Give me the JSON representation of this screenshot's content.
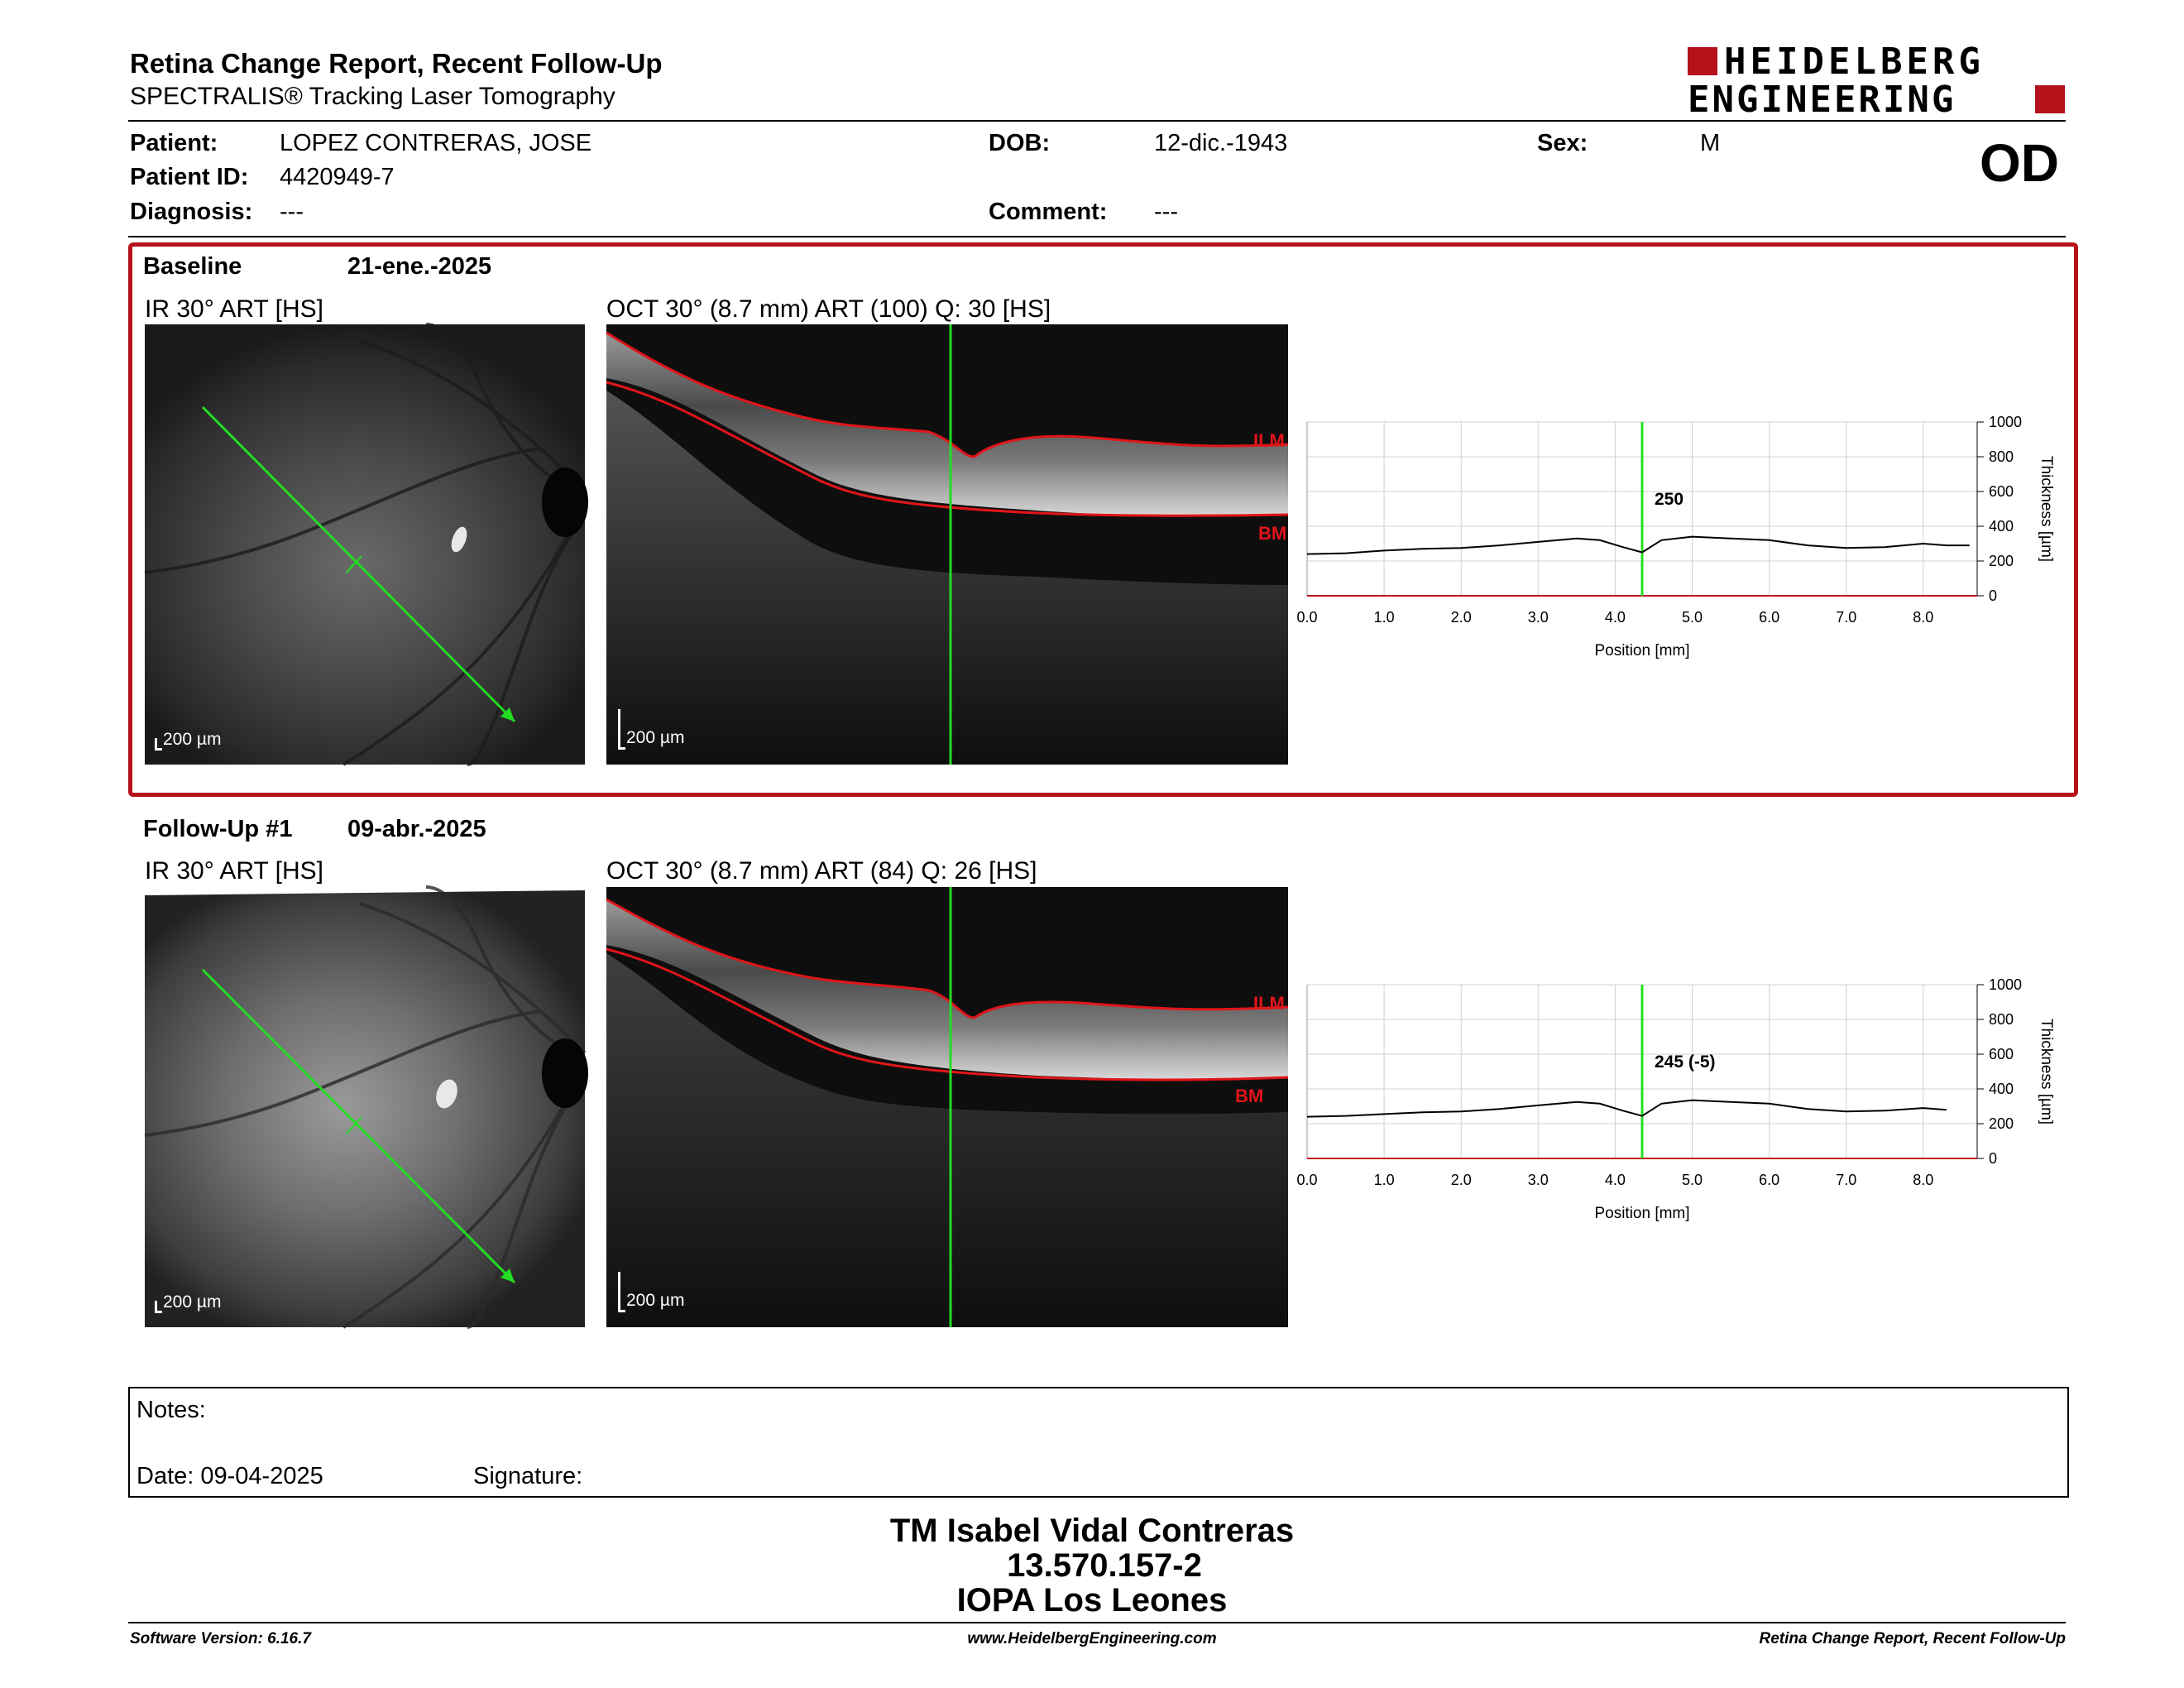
{
  "header": {
    "title": "Retina Change Report, Recent Follow-Up",
    "subtitle": "SPECTRALIS® Tracking Laser Tomography",
    "logo_line1": "HEIDELBERG",
    "logo_line2": "ENGINEERING",
    "eye": "OD"
  },
  "patient": {
    "patient_label": "Patient:",
    "patient_value": "LOPEZ CONTRERAS, JOSE",
    "id_label": "Patient ID:",
    "id_value": "4420949-7",
    "diagnosis_label": "Diagnosis:",
    "diagnosis_value": "---",
    "dob_label": "DOB:",
    "dob_value": "12-dic.-1943",
    "comment_label": "Comment:",
    "comment_value": "---",
    "sex_label": "Sex:",
    "sex_value": "M"
  },
  "exams": [
    {
      "label": "Baseline",
      "date": "21-ene.-2025",
      "ir_title": "IR 30° ART [HS]",
      "oct_title": "OCT 30° (8.7 mm) ART (100) Q: 30 [HS]",
      "ir_scale": "200 µm",
      "oct_scale": "200 µm",
      "ilm": "ILM",
      "bm": "BM",
      "thickness_label": "250"
    },
    {
      "label": "Follow-Up #1",
      "date": "09-abr.-2025",
      "ir_title": "IR 30° ART [HS]",
      "oct_title": "OCT 30° (8.7 mm) ART (84) Q: 26 [HS]",
      "ir_scale": "200 µm",
      "oct_scale": "200 µm",
      "ilm": "ILM",
      "bm": "BM",
      "thickness_label": "245 (-5)"
    }
  ],
  "chart_data": [
    {
      "type": "line",
      "xlabel": "Position [mm]",
      "ylabel": "Thickness [µm]",
      "xlim": [
        0,
        8.7
      ],
      "ylim": [
        0,
        1000
      ],
      "xticks": [
        "0.0",
        "1.0",
        "2.0",
        "3.0",
        "4.0",
        "5.0",
        "6.0",
        "7.0",
        "8.0"
      ],
      "yticks": [
        "0",
        "200",
        "400",
        "600",
        "800",
        "1000"
      ],
      "marker_x": 4.35,
      "series": [
        {
          "x": [
            0,
            0.5,
            1,
            1.5,
            2,
            2.5,
            3,
            3.5,
            3.8,
            4.1,
            4.35,
            4.6,
            5,
            5.5,
            6,
            6.5,
            7,
            7.5,
            8,
            8.3,
            8.6
          ],
          "values": [
            240,
            245,
            260,
            270,
            275,
            290,
            310,
            330,
            320,
            280,
            250,
            320,
            340,
            330,
            320,
            290,
            275,
            280,
            300,
            290,
            290
          ]
        }
      ]
    },
    {
      "type": "line",
      "xlabel": "Position [mm]",
      "ylabel": "Thickness [µm]",
      "xlim": [
        0,
        8.7
      ],
      "ylim": [
        0,
        1000
      ],
      "xticks": [
        "0.0",
        "1.0",
        "2.0",
        "3.0",
        "4.0",
        "5.0",
        "6.0",
        "7.0",
        "8.0"
      ],
      "yticks": [
        "0",
        "200",
        "400",
        "600",
        "800",
        "1000"
      ],
      "marker_x": 4.35,
      "series": [
        {
          "x": [
            0,
            0.5,
            1,
            1.5,
            2,
            2.5,
            3,
            3.5,
            3.8,
            4.1,
            4.35,
            4.6,
            5,
            5.5,
            6,
            6.5,
            7,
            7.5,
            8,
            8.3
          ],
          "values": [
            240,
            245,
            255,
            265,
            270,
            285,
            305,
            325,
            315,
            275,
            245,
            315,
            335,
            325,
            315,
            285,
            270,
            275,
            290,
            280
          ]
        }
      ]
    }
  ],
  "notes": {
    "notes_label": "Notes:",
    "date_label": "Date: 09-04-2025",
    "signature_label": "Signature:"
  },
  "signature_block": {
    "name": "TM Isabel Vidal Contreras",
    "id": "13.570.157-2",
    "org": "IOPA Los Leones"
  },
  "footer": {
    "software": "Software Version: 6.16.7",
    "website": "www.HeidelbergEngineering.com",
    "report": "Retina Change Report, Recent Follow-Up"
  },
  "colors": {
    "accent_red": "#b5121b",
    "scan_green": "#22dd22",
    "ilm_red": "#e0151a"
  }
}
